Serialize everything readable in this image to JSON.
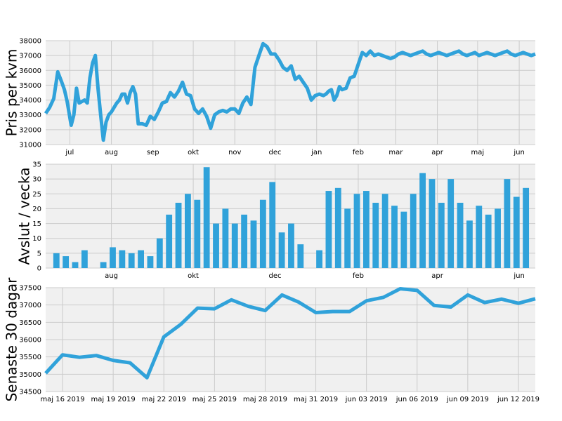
{
  "figure": {
    "background": "#ffffff",
    "axes_bg": "#f0f0f0",
    "grid": "#cbcbcb",
    "line_color": "#30a2da",
    "bar_color": "#30a2da"
  },
  "chart_data": [
    {
      "type": "line",
      "ylabel": "Pris per kvm",
      "ylim": [
        31000,
        38000
      ],
      "yticks": [
        31000,
        32000,
        33000,
        34000,
        35000,
        36000,
        37000,
        38000
      ],
      "xlim": [
        "2018-06-13",
        "2019-06-13"
      ],
      "xticks": [
        {
          "label": "jul",
          "date": "2018-07-01"
        },
        {
          "label": "aug",
          "date": "2018-08-01"
        },
        {
          "label": "sep",
          "date": "2018-09-01"
        },
        {
          "label": "okt",
          "date": "2018-10-01"
        },
        {
          "label": "nov",
          "date": "2018-11-01"
        },
        {
          "label": "dec",
          "date": "2018-12-01"
        },
        {
          "label": "jan",
          "date": "2019-01-01"
        },
        {
          "label": "feb",
          "date": "2019-02-01"
        },
        {
          "label": "mar",
          "date": "2019-03-01"
        },
        {
          "label": "apr",
          "date": "2019-04-01"
        },
        {
          "label": "maj",
          "date": "2019-05-01"
        },
        {
          "label": "jun",
          "date": "2019-06-01"
        }
      ],
      "grid": true,
      "series": [
        {
          "x": [
            "2018-06-13",
            "2018-06-16",
            "2018-06-19",
            "2018-06-22",
            "2018-06-25",
            "2018-06-27",
            "2018-06-29",
            "2018-07-02",
            "2018-07-04",
            "2018-07-06",
            "2018-07-08",
            "2018-07-10",
            "2018-07-12",
            "2018-07-14",
            "2018-07-16",
            "2018-07-18",
            "2018-07-20",
            "2018-07-22",
            "2018-07-24",
            "2018-07-26",
            "2018-07-28",
            "2018-07-30",
            "2018-08-01",
            "2018-08-03",
            "2018-08-05",
            "2018-08-07",
            "2018-08-09",
            "2018-08-11",
            "2018-08-13",
            "2018-08-15",
            "2018-08-17",
            "2018-08-19",
            "2018-08-21",
            "2018-08-24",
            "2018-08-27",
            "2018-08-30",
            "2018-09-02",
            "2018-09-05",
            "2018-09-08",
            "2018-09-11",
            "2018-09-14",
            "2018-09-17",
            "2018-09-20",
            "2018-09-23",
            "2018-09-26",
            "2018-09-29",
            "2018-10-02",
            "2018-10-05",
            "2018-10-08",
            "2018-10-11",
            "2018-10-14",
            "2018-10-17",
            "2018-10-20",
            "2018-10-23",
            "2018-10-26",
            "2018-10-29",
            "2018-11-01",
            "2018-11-04",
            "2018-11-07",
            "2018-11-10",
            "2018-11-13",
            "2018-11-16",
            "2018-11-19",
            "2018-11-22",
            "2018-11-25",
            "2018-11-28",
            "2018-12-01",
            "2018-12-04",
            "2018-12-07",
            "2018-12-10",
            "2018-12-13",
            "2018-12-16",
            "2018-12-19",
            "2018-12-22",
            "2018-12-25",
            "2018-12-28",
            "2018-12-31",
            "2019-01-03",
            "2019-01-06",
            "2019-01-08",
            "2019-01-10",
            "2019-01-12",
            "2019-01-14",
            "2019-01-16",
            "2019-01-18",
            "2019-01-20",
            "2019-01-23",
            "2019-01-26",
            "2019-01-29",
            "2019-02-01",
            "2019-02-04",
            "2019-02-07",
            "2019-02-10",
            "2019-02-13",
            "2019-02-16",
            "2019-02-19",
            "2019-02-22",
            "2019-02-25",
            "2019-02-28",
            "2019-03-03",
            "2019-03-06",
            "2019-03-09",
            "2019-03-12",
            "2019-03-15",
            "2019-03-18",
            "2019-03-21",
            "2019-03-24",
            "2019-03-27",
            "2019-03-30",
            "2019-04-02",
            "2019-04-05",
            "2019-04-08",
            "2019-04-11",
            "2019-04-14",
            "2019-04-17",
            "2019-04-20",
            "2019-04-23",
            "2019-04-26",
            "2019-04-29",
            "2019-05-02",
            "2019-05-05",
            "2019-05-08",
            "2019-05-11",
            "2019-05-14",
            "2019-05-17",
            "2019-05-20",
            "2019-05-23",
            "2019-05-26",
            "2019-05-29",
            "2019-06-01",
            "2019-06-04",
            "2019-06-07",
            "2019-06-10",
            "2019-06-13"
          ],
          "y": [
            33100,
            33500,
            34100,
            35900,
            35200,
            34700,
            33900,
            32300,
            33000,
            34800,
            33800,
            33900,
            34000,
            33800,
            35500,
            36500,
            37000,
            34800,
            33000,
            31300,
            32500,
            33000,
            33200,
            33500,
            33800,
            34000,
            34400,
            34400,
            33800,
            34500,
            34900,
            34400,
            32400,
            32400,
            32300,
            32900,
            32700,
            33200,
            33800,
            33900,
            34500,
            34200,
            34600,
            35200,
            34400,
            34300,
            33400,
            33100,
            33400,
            32900,
            32100,
            33000,
            33200,
            33300,
            33200,
            33400,
            33400,
            33100,
            33800,
            34200,
            33700,
            36200,
            37000,
            37800,
            37600,
            37100,
            37100,
            36700,
            36200,
            36000,
            36300,
            35400,
            35600,
            35200,
            34800,
            34000,
            34300,
            34400,
            34300,
            34400,
            34600,
            34700,
            34000,
            34300,
            34900,
            34700,
            34800,
            35500,
            35600,
            36400,
            37200,
            37000,
            37300,
            37000,
            37100,
            37000,
            36900,
            36800,
            36900,
            37100,
            37200,
            37100,
            37000,
            37100,
            37200,
            37300,
            37100,
            37000,
            37100,
            37200,
            37100,
            37000,
            37100,
            37200,
            37300,
            37100,
            37000,
            37100,
            37200,
            37000,
            37100,
            37200,
            37100,
            37000,
            37100,
            37200,
            37300,
            37100,
            37000,
            37100,
            37200,
            37100,
            37000,
            37100
          ]
        }
      ]
    },
    {
      "type": "bar",
      "ylabel": "Avslut / vecka",
      "ylim": [
        0,
        35
      ],
      "yticks": [
        0,
        5,
        10,
        15,
        20,
        25,
        30,
        35
      ],
      "xlim": [
        "2018-06-13",
        "2019-06-13"
      ],
      "xticks": [
        {
          "label": "aug",
          "date": "2018-08-01"
        },
        {
          "label": "okt",
          "date": "2018-10-01"
        },
        {
          "label": "dec",
          "date": "2018-12-01"
        },
        {
          "label": "feb",
          "date": "2019-02-01"
        },
        {
          "label": "apr",
          "date": "2019-04-01"
        },
        {
          "label": "jun",
          "date": "2019-06-01"
        }
      ],
      "grid": true,
      "x": [
        "2018-06-21",
        "2018-06-28",
        "2018-07-05",
        "2018-07-12",
        "2018-07-19",
        "2018-07-26",
        "2018-08-02",
        "2018-08-09",
        "2018-08-16",
        "2018-08-23",
        "2018-08-30",
        "2018-09-06",
        "2018-09-13",
        "2018-09-20",
        "2018-09-27",
        "2018-10-04",
        "2018-10-11",
        "2018-10-18",
        "2018-10-25",
        "2018-11-01",
        "2018-11-08",
        "2018-11-15",
        "2018-11-22",
        "2018-11-29",
        "2018-12-06",
        "2018-12-13",
        "2018-12-20",
        "2018-12-27",
        "2019-01-03",
        "2019-01-10",
        "2019-01-17",
        "2019-01-24",
        "2019-01-31",
        "2019-02-07",
        "2019-02-14",
        "2019-02-21",
        "2019-02-28",
        "2019-03-07",
        "2019-03-14",
        "2019-03-21",
        "2019-03-28",
        "2019-04-04",
        "2019-04-11",
        "2019-04-18",
        "2019-04-25",
        "2019-05-02",
        "2019-05-09",
        "2019-05-16",
        "2019-05-23",
        "2019-05-30",
        "2019-06-06"
      ],
      "values": [
        5,
        4,
        2,
        6,
        0,
        2,
        7,
        6,
        5,
        6,
        4,
        10,
        18,
        22,
        25,
        23,
        34,
        15,
        20,
        15,
        18,
        16,
        23,
        29,
        12,
        15,
        8,
        0,
        6,
        26,
        27,
        20,
        25,
        26,
        22,
        25,
        21,
        19,
        25,
        32,
        30,
        22,
        30,
        22,
        16,
        21,
        18,
        20,
        30,
        24,
        27
      ]
    },
    {
      "type": "line",
      "ylabel": "Senaste 30 dagar",
      "ylim": [
        34500,
        37500
      ],
      "yticks": [
        34500,
        35000,
        35500,
        36000,
        36500,
        37000,
        37500
      ],
      "xlim": [
        "2019-05-15",
        "2019-06-13"
      ],
      "xticks": [
        {
          "label": "maj 16 2019",
          "date": "2019-05-16"
        },
        {
          "label": "maj 19 2019",
          "date": "2019-05-19"
        },
        {
          "label": "maj 22 2019",
          "date": "2019-05-22"
        },
        {
          "label": "maj 25 2019",
          "date": "2019-05-25"
        },
        {
          "label": "maj 28 2019",
          "date": "2019-05-28"
        },
        {
          "label": "maj 31 2019",
          "date": "2019-05-31"
        },
        {
          "label": "jun 03 2019",
          "date": "2019-06-03"
        },
        {
          "label": "jun 06 2019",
          "date": "2019-06-06"
        },
        {
          "label": "jun 09 2019",
          "date": "2019-06-09"
        },
        {
          "label": "jun 12 2019",
          "date": "2019-06-12"
        }
      ],
      "grid": true,
      "series": [
        {
          "x": [
            "2019-05-15",
            "2019-05-16",
            "2019-05-17",
            "2019-05-18",
            "2019-05-19",
            "2019-05-20",
            "2019-05-21",
            "2019-05-22",
            "2019-05-23",
            "2019-05-24",
            "2019-05-25",
            "2019-05-26",
            "2019-05-27",
            "2019-05-28",
            "2019-05-29",
            "2019-05-30",
            "2019-05-31",
            "2019-06-01",
            "2019-06-02",
            "2019-06-03",
            "2019-06-04",
            "2019-06-05",
            "2019-06-06",
            "2019-06-07",
            "2019-06-08",
            "2019-06-09",
            "2019-06-10",
            "2019-06-11",
            "2019-06-12",
            "2019-06-13"
          ],
          "y": [
            35030,
            35560,
            35490,
            35540,
            35400,
            35330,
            34900,
            36080,
            36440,
            36910,
            36890,
            37150,
            36960,
            36840,
            37290,
            37080,
            36780,
            36810,
            36810,
            37120,
            37220,
            37470,
            37420,
            36990,
            36940,
            37290,
            37070,
            37170,
            37050,
            37180
          ]
        }
      ]
    }
  ]
}
